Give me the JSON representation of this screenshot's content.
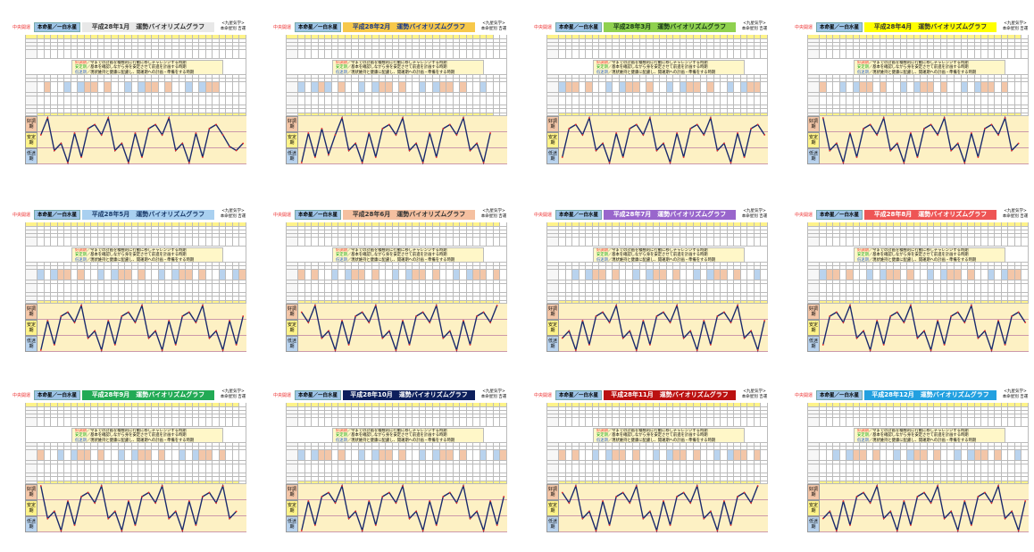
{
  "common": {
    "corner_label": "中央開運",
    "honmei_label": "本命星／一白水星",
    "right_label_1": "<九星気学>",
    "right_label_2": "本命星別 吉運",
    "legend": [
      {
        "term": "好調期",
        "text": "／今までの計画を積極的に行動に移しチャレンジする時期",
        "color": "#e33"
      },
      {
        "term": "安定期",
        "text": "／基本を確認しながら身を安定させて前進を計画する時期",
        "color": "#2a2"
      },
      {
        "term": "低迷期",
        "text": "／現状維持と健康に配慮し、開運期への計画・準備をする時期",
        "color": "#36c"
      }
    ],
    "bands": [
      "好調期",
      "安定期",
      "低迷期"
    ],
    "band_colors": [
      "#f3c6a8",
      "#fff38a",
      "#b9d3ee"
    ],
    "graph_bg": "#fdf1c4",
    "line_color": "#1a2a6c",
    "point_color": "#e22"
  },
  "chart_data": [
    {
      "type": "line",
      "title": "平成28年1月　運勢バイオリズムグラフ",
      "title_bg": "#e8e8e8",
      "title_fg": "#333",
      "ylim": [
        0,
        10
      ],
      "values": [
        6.2,
        10,
        2.7,
        4.3,
        0,
        6.6,
        1.2,
        7.6,
        8.5,
        6.2,
        10,
        2.7,
        4.3,
        0,
        6.6,
        1.2,
        7.6,
        8.5,
        6.2,
        10,
        2.7,
        4.3,
        0,
        6.6,
        1.2,
        7.6,
        8.5,
        6.2,
        3.6,
        2.7,
        4.3
      ]
    },
    {
      "type": "line",
      "title": "平成28年2月　運勢バイオリズムグラフ",
      "title_bg": "#f7c84a",
      "title_fg": "#1a3a8a",
      "ylim": [
        0,
        10
      ],
      "values": [
        0,
        6.6,
        1.2,
        7.6,
        1.8,
        6.2,
        10,
        2.7,
        4.3,
        0,
        6.6,
        1.2,
        7.6,
        8.5,
        6.2,
        10,
        2.7,
        4.3,
        0,
        6.6,
        1.2,
        7.6,
        8.5,
        6.2,
        10,
        2.7,
        4.3,
        0,
        6.6
      ]
    },
    {
      "type": "line",
      "title": "平成28年3月　運勢バイオリズムグラフ",
      "title_bg": "#8fd14f",
      "title_fg": "#1a3a1a",
      "ylim": [
        0,
        10
      ],
      "values": [
        1.2,
        7.6,
        8.5,
        6.2,
        10,
        2.7,
        4.3,
        0,
        6.6,
        1.2,
        7.6,
        8.5,
        6.2,
        10,
        2.7,
        4.3,
        0,
        6.6,
        1.2,
        7.6,
        8.5,
        6.2,
        10,
        2.7,
        4.3,
        0,
        6.6,
        1.2,
        7.6,
        8.5,
        6.2
      ]
    },
    {
      "type": "line",
      "title": "平成28年4月　運勢バイオリズムグラフ",
      "title_bg": "#ffff00",
      "title_fg": "#333",
      "ylim": [
        0,
        10
      ],
      "values": [
        10,
        2.7,
        4.3,
        0,
        6.6,
        1.2,
        7.6,
        8.5,
        6.2,
        10,
        2.7,
        4.3,
        0,
        6.6,
        1.2,
        7.6,
        8.5,
        6.2,
        10,
        2.7,
        4.3,
        0,
        6.6,
        1.2,
        7.6,
        8.5,
        6.2,
        10,
        2.7,
        4.3
      ]
    },
    {
      "type": "line",
      "title": "平成28年5月　運勢バイオリズムグラフ",
      "title_bg": "#a9d0f0",
      "title_fg": "#1a3a6a",
      "ylim": [
        0,
        10
      ],
      "values": [
        0,
        6.6,
        1.2,
        7.6,
        8.5,
        6.2,
        10,
        2.7,
        4.3,
        0,
        6.6,
        1.2,
        7.6,
        8.5,
        6.2,
        10,
        2.7,
        4.3,
        0,
        6.6,
        1.2,
        7.6,
        8.5,
        6.2,
        10,
        2.7,
        4.3,
        0,
        6.6,
        1.2,
        7.6
      ]
    },
    {
      "type": "line",
      "title": "平成28年6月　運勢バイオリズムグラフ",
      "title_bg": "#f5c0a0",
      "title_fg": "#333",
      "ylim": [
        0,
        10
      ],
      "values": [
        8.5,
        6.2,
        10,
        2.7,
        4.3,
        0,
        6.6,
        1.2,
        7.6,
        8.5,
        6.2,
        10,
        2.7,
        4.3,
        0,
        6.6,
        1.2,
        7.6,
        8.5,
        6.2,
        10,
        2.7,
        4.3,
        0,
        6.6,
        1.2,
        7.6,
        8.5,
        6.2,
        10
      ]
    },
    {
      "type": "line",
      "title": "平成28年7月　運勢バイオリズムグラフ",
      "title_bg": "#9966cc",
      "title_fg": "#fff",
      "ylim": [
        0,
        10
      ],
      "values": [
        2.7,
        4.3,
        0,
        6.6,
        1.2,
        7.6,
        8.5,
        6.2,
        10,
        2.7,
        4.3,
        0,
        6.6,
        1.2,
        7.6,
        8.5,
        6.2,
        10,
        2.7,
        4.3,
        0,
        6.6,
        1.2,
        7.6,
        8.5,
        6.2,
        10,
        2.7,
        4.3,
        0,
        6.6
      ]
    },
    {
      "type": "line",
      "title": "平成28年8月　運勢バイオリズムグラフ",
      "title_bg": "#ee5555",
      "title_fg": "#fff",
      "ylim": [
        0,
        10
      ],
      "values": [
        1.2,
        7.6,
        8.5,
        6.2,
        10,
        2.7,
        4.3,
        0,
        6.6,
        1.2,
        7.6,
        8.5,
        6.2,
        10,
        2.7,
        4.3,
        0,
        6.6,
        1.2,
        7.6,
        8.5,
        6.2,
        10,
        2.7,
        4.3,
        0,
        6.6,
        1.2,
        7.6,
        8.5,
        6.2
      ]
    },
    {
      "type": "line",
      "title": "平成28年9月　運勢バイオリズムグラフ",
      "title_bg": "#22aa55",
      "title_fg": "#fff",
      "ylim": [
        0,
        10
      ],
      "values": [
        10,
        2.7,
        4.3,
        0,
        6.6,
        1.2,
        7.6,
        8.5,
        6.2,
        10,
        2.7,
        4.3,
        0,
        6.6,
        1.2,
        7.6,
        8.5,
        6.2,
        10,
        2.7,
        4.3,
        0,
        6.6,
        1.2,
        7.6,
        8.5,
        6.2,
        10,
        2.7,
        4.3
      ]
    },
    {
      "type": "line",
      "title": "平成28年10月　運勢バイオリズムグラフ",
      "title_bg": "#0d1f5c",
      "title_fg": "#fff",
      "ylim": [
        0,
        10
      ],
      "values": [
        0,
        6.6,
        1.2,
        7.6,
        8.5,
        6.2,
        10,
        2.7,
        4.3,
        0,
        6.6,
        1.2,
        7.6,
        8.5,
        6.2,
        10,
        2.7,
        4.3,
        0,
        6.6,
        1.2,
        7.6,
        8.5,
        6.2,
        10,
        2.7,
        4.3,
        0,
        6.6,
        1.2,
        7.6
      ]
    },
    {
      "type": "line",
      "title": "平成28年11月　運勢バイオリズムグラフ",
      "title_bg": "#bb1111",
      "title_fg": "#fff",
      "ylim": [
        0,
        10
      ],
      "values": [
        8.5,
        6.2,
        10,
        2.7,
        4.3,
        0,
        6.6,
        1.2,
        7.6,
        8.5,
        6.2,
        10,
        2.7,
        4.3,
        0,
        6.6,
        1.2,
        7.6,
        8.5,
        6.2,
        10,
        2.7,
        4.3,
        0,
        6.6,
        1.2,
        7.6,
        8.5,
        6.2,
        10
      ]
    },
    {
      "type": "line",
      "title": "平成28年12月　運勢バイオリズムグラフ",
      "title_bg": "#22a0e0",
      "title_fg": "#fff",
      "ylim": [
        0,
        10
      ],
      "values": [
        2.7,
        4.3,
        0,
        6.6,
        1.2,
        7.6,
        8.5,
        6.2,
        10,
        2.7,
        4.3,
        0,
        6.6,
        1.2,
        7.6,
        8.5,
        6.2,
        10,
        2.7,
        4.3,
        0,
        6.6,
        1.2,
        7.6,
        8.5,
        6.2,
        10,
        2.7,
        4.3,
        0,
        6.6
      ]
    }
  ]
}
